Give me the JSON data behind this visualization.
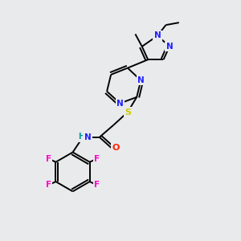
{
  "bg_color": "#e8eaec",
  "atom_colors": {
    "N": "#2020ff",
    "O": "#ff2000",
    "S": "#cccc00",
    "F": "#ff00cc",
    "C": "#000000",
    "H": "#009999"
  },
  "bond_color": "#000000",
  "lw": 1.4,
  "fontsize": 7.5
}
